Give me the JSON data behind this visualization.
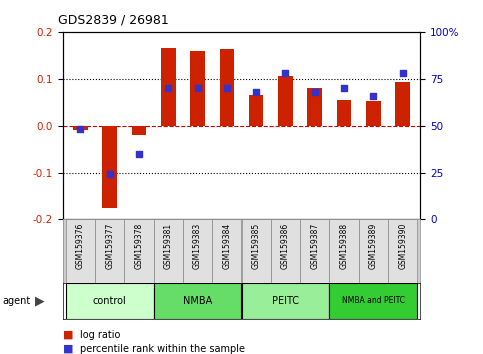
{
  "title": "GDS2839 / 26981",
  "samples": [
    "GSM159376",
    "GSM159377",
    "GSM159378",
    "GSM159381",
    "GSM159383",
    "GSM159384",
    "GSM159385",
    "GSM159386",
    "GSM159387",
    "GSM159388",
    "GSM159389",
    "GSM159390"
  ],
  "log_ratio": [
    -0.01,
    -0.175,
    -0.02,
    0.165,
    0.16,
    0.163,
    0.065,
    0.105,
    0.08,
    0.055,
    0.053,
    0.093
  ],
  "percentile_rank": [
    48,
    24,
    35,
    70,
    70,
    70,
    68,
    78,
    68,
    70,
    66,
    78
  ],
  "groups": [
    {
      "label": "control",
      "start": 0,
      "end": 3,
      "color": "#ccffcc"
    },
    {
      "label": "NMBA",
      "start": 3,
      "end": 6,
      "color": "#66dd66"
    },
    {
      "label": "PEITC",
      "start": 6,
      "end": 9,
      "color": "#99ee99"
    },
    {
      "label": "NMBA and PEITC",
      "start": 9,
      "end": 12,
      "color": "#33cc33"
    }
  ],
  "bar_color_red": "#cc2200",
  "bar_color_blue": "#3333cc",
  "ylim_left": [
    -0.2,
    0.2
  ],
  "ylim_right": [
    0,
    100
  ],
  "yticks_left": [
    -0.2,
    -0.1,
    0.0,
    0.1,
    0.2
  ],
  "yticks_right": [
    0,
    25,
    50,
    75,
    100
  ],
  "ytick_labels_right": [
    "0",
    "25",
    "50",
    "75",
    "100%"
  ],
  "hlines": [
    -0.1,
    0.0,
    0.1
  ],
  "hline_colors": [
    "black",
    "#cc0000",
    "black"
  ],
  "hline_styles": [
    "dotted",
    "dashed",
    "dotted"
  ],
  "bar_width": 0.5,
  "agent_label": "agent",
  "legend_items": [
    {
      "label": "log ratio",
      "color": "#cc2200"
    },
    {
      "label": "percentile rank within the sample",
      "color": "#3333cc"
    }
  ],
  "background_color": "#ffffff",
  "plot_bg_color": "#ffffff",
  "sample_box_color": "#e0e0e0",
  "sample_box_edge": "#888888"
}
